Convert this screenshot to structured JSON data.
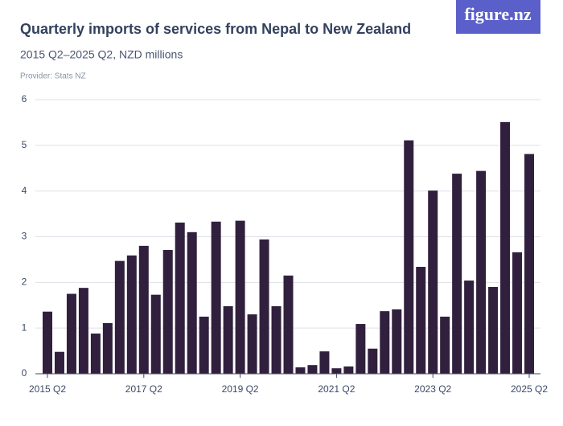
{
  "brand": "figure.nz",
  "chart_data": {
    "type": "bar",
    "title": "Quarterly imports of services from Nepal to New Zealand",
    "subtitle": "2015 Q2–2025 Q2, NZD millions",
    "provider": "Provider: Stats NZ",
    "categories": [
      "2015 Q2",
      null,
      null,
      null,
      null,
      null,
      null,
      null,
      "2017 Q2",
      null,
      null,
      null,
      null,
      null,
      null,
      null,
      "2019 Q2",
      null,
      null,
      null,
      null,
      null,
      null,
      null,
      "2021 Q2",
      null,
      null,
      null,
      null,
      null,
      null,
      null,
      "2023 Q2",
      null,
      null,
      null,
      null,
      null,
      null,
      null,
      "2025 Q2"
    ],
    "values": [
      1.36,
      0.48,
      1.75,
      1.88,
      0.88,
      1.11,
      2.47,
      2.59,
      2.8,
      1.73,
      2.71,
      3.31,
      3.1,
      1.25,
      3.33,
      1.48,
      3.35,
      1.3,
      2.94,
      1.48,
      2.15,
      0.14,
      0.19,
      0.49,
      0.12,
      0.16,
      1.09,
      0.55,
      1.37,
      1.41,
      5.11,
      2.34,
      4.01,
      1.25,
      4.38,
      2.04,
      4.44,
      1.9,
      5.51,
      2.66,
      4.81
    ],
    "color": "#31203d",
    "ylim": [
      0,
      6
    ],
    "yticks": [
      0,
      1,
      2,
      3,
      4,
      5,
      6
    ],
    "grid": true
  }
}
